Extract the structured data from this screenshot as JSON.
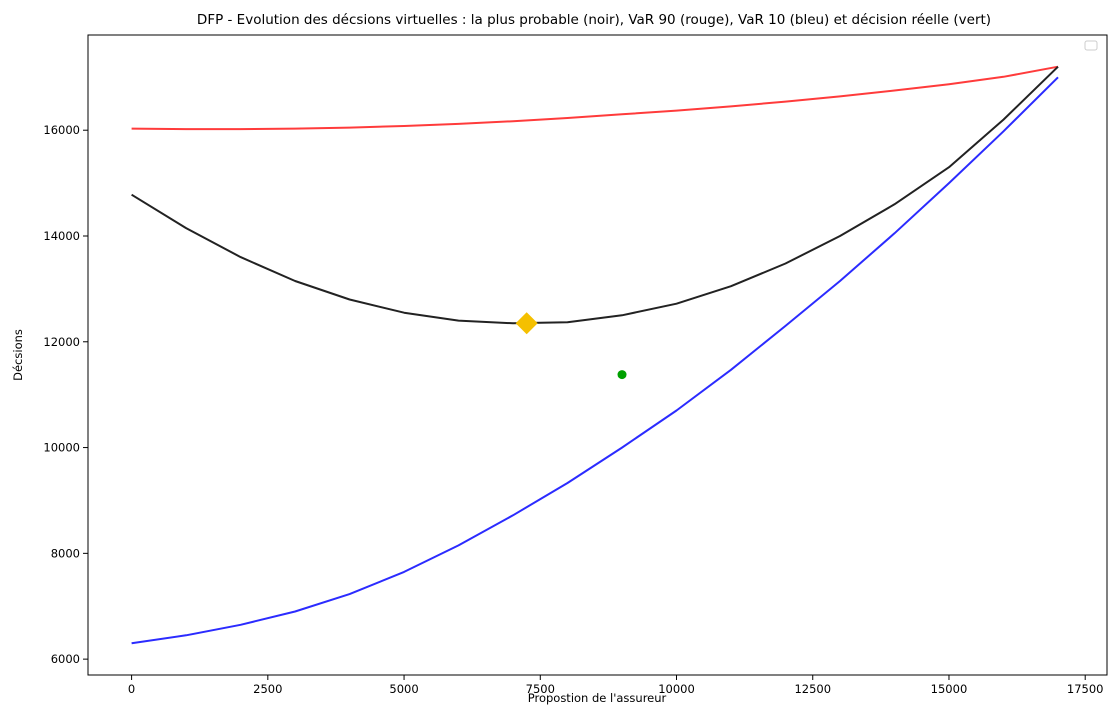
{
  "chart_data": {
    "type": "line",
    "title": "DFP - Evolution des décsions virtuelles : la plus probable (noir), VaR 90 (rouge), VaR 10 (bleu) et décision réelle (vert)",
    "xlabel": "Propostion de l'assureur",
    "ylabel": "Décsions",
    "xlim": [
      -800,
      17900
    ],
    "ylim": [
      5700,
      17800
    ],
    "xticks": [
      0,
      2500,
      5000,
      7500,
      10000,
      12500,
      15000,
      17500
    ],
    "yticks": [
      6000,
      8000,
      10000,
      12000,
      14000,
      16000
    ],
    "grid": false,
    "legend": "top-right (empty)",
    "x": [
      0,
      1000,
      2000,
      3000,
      4000,
      5000,
      6000,
      7000,
      8000,
      9000,
      10000,
      11000,
      12000,
      13000,
      14000,
      15000,
      16000,
      17000
    ],
    "series": [
      {
        "color": "#ff3b3b",
        "values": [
          16030,
          16020,
          16020,
          16030,
          16050,
          16080,
          16120,
          16170,
          16230,
          16300,
          16370,
          16450,
          16540,
          16640,
          16750,
          16870,
          17010,
          17200
        ]
      },
      {
        "color": "#222222",
        "values": [
          14780,
          14150,
          13600,
          13150,
          12800,
          12550,
          12400,
          12350,
          12370,
          12500,
          12720,
          13050,
          13480,
          14000,
          14600,
          15300,
          16200,
          17200
        ]
      },
      {
        "color": "#2b2bff",
        "values": [
          6300,
          6450,
          6650,
          6900,
          7230,
          7650,
          8150,
          8720,
          9330,
          10000,
          10700,
          11470,
          12300,
          13150,
          14050,
          15000,
          15980,
          17000
        ]
      }
    ],
    "markers": [
      {
        "shape": "diamond",
        "color": "#f5c000",
        "x": 7250,
        "y": 12350
      },
      {
        "shape": "circle",
        "color": "#00a000",
        "x": 9000,
        "y": 11380
      }
    ]
  }
}
